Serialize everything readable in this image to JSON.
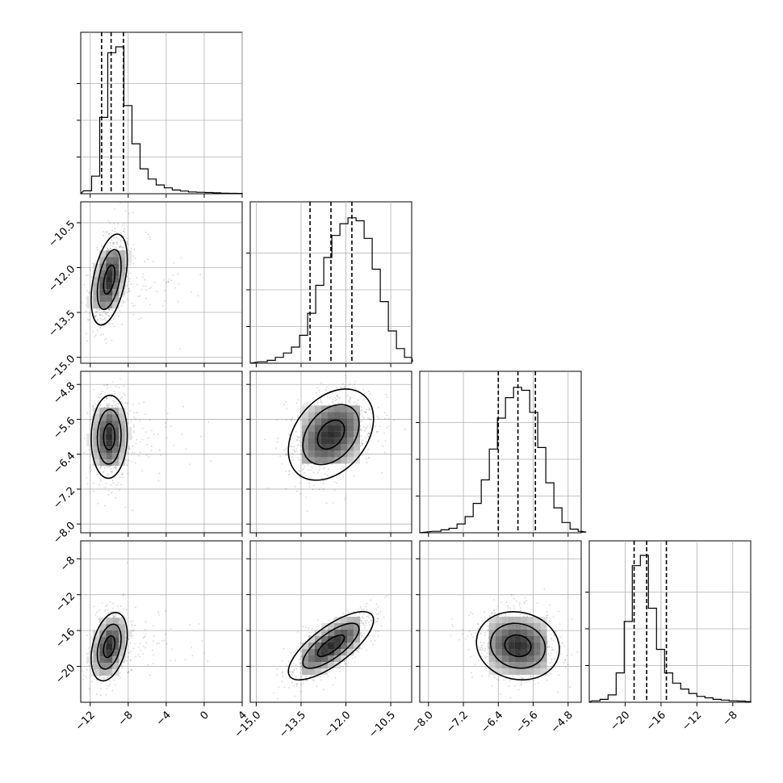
{
  "chart_data": {
    "type": "corner",
    "grid": true,
    "colors": {
      "line": "#000000",
      "grid": "#b0b0b0",
      "points": "#000000"
    },
    "parameters": [
      {
        "range": [
          -13,
          4
        ],
        "ticks": [
          -12,
          -8,
          -4,
          0,
          4
        ],
        "tick_labels": [
          "−12",
          "−8",
          "−4",
          "0",
          "4"
        ],
        "hist_bin_width": 0.85,
        "hist": [
          0.02,
          0.12,
          0.52,
          0.96,
          1.0,
          0.6,
          0.34,
          0.17,
          0.1,
          0.06,
          0.04,
          0.025,
          0.018,
          0.012,
          0.01,
          0.008,
          0.006,
          0.004,
          0.003,
          0.002
        ],
        "quantiles": [
          -10.8,
          -9.8,
          -8.5
        ]
      },
      {
        "range": [
          -15.2,
          -9.8
        ],
        "ticks": [
          -15.0,
          -13.5,
          -12.0,
          -10.5
        ],
        "tick_labels": [
          "−15.0",
          "−13.5",
          "−12.0",
          "−10.5"
        ],
        "hist_bin_width": 0.27,
        "hist": [
          0.01,
          0.02,
          0.04,
          0.07,
          0.11,
          0.19,
          0.34,
          0.53,
          0.72,
          0.87,
          0.95,
          0.99,
          0.97,
          0.85,
          0.64,
          0.42,
          0.22,
          0.1,
          0.04,
          0.015
        ],
        "quantiles": [
          -13.2,
          -12.5,
          -11.8
        ]
      },
      {
        "range": [
          -8.2,
          -4.5
        ],
        "ticks": [
          -8.0,
          -7.2,
          -6.4,
          -5.6,
          -4.8
        ],
        "tick_labels": [
          "−8.0",
          "−7.2",
          "−6.4",
          "−5.6",
          "−4.8"
        ],
        "hist_bin_width": 0.185,
        "hist": [
          0.01,
          0.02,
          0.03,
          0.06,
          0.11,
          0.2,
          0.36,
          0.57,
          0.78,
          0.92,
          0.99,
          0.97,
          0.82,
          0.58,
          0.34,
          0.17,
          0.07,
          0.025,
          0.01,
          0.005
        ],
        "quantiles": [
          -6.4,
          -5.95,
          -5.55
        ]
      },
      {
        "range": [
          -24,
          -6
        ],
        "ticks": [
          -20,
          -16,
          -12,
          -8
        ],
        "tick_labels": [
          "−20",
          "−16",
          "−12",
          "−8"
        ],
        "hist_bin_width": 0.9,
        "hist": [
          0.01,
          0.02,
          0.05,
          0.2,
          0.55,
          0.93,
          1.0,
          0.64,
          0.36,
          0.2,
          0.13,
          0.09,
          0.06,
          0.04,
          0.03,
          0.02,
          0.015,
          0.01,
          0.008,
          0.005
        ],
        "quantiles": [
          -19.0,
          -17.6,
          -15.4
        ]
      }
    ],
    "pairs": [
      {
        "x": 0,
        "y": 1,
        "mean": [
          -10.0,
          -12.4
        ],
        "sd": [
          1.0,
          0.8
        ],
        "corr": 0.45,
        "tail_x": 1.2,
        "levels": [
          0.4,
          0.9
        ]
      },
      {
        "x": 0,
        "y": 2,
        "mean": [
          -10.0,
          -6.0
        ],
        "sd": [
          1.0,
          0.5
        ],
        "corr": 0.05,
        "tail_x": 1.2,
        "levels": [
          0.4,
          0.9
        ]
      },
      {
        "x": 1,
        "y": 2,
        "mean": [
          -12.5,
          -5.95
        ],
        "sd": [
          0.75,
          0.55
        ],
        "corr": 0.35,
        "tail_x": 0,
        "levels": [
          0.4,
          0.9
        ]
      },
      {
        "x": 0,
        "y": 3,
        "mean": [
          -10.0,
          -17.8
        ],
        "sd": [
          1.0,
          2.0
        ],
        "corr": 0.35,
        "tail_x": 1.2,
        "levels": [
          0.4,
          0.9
        ]
      },
      {
        "x": 1,
        "y": 3,
        "mean": [
          -12.5,
          -17.7
        ],
        "sd": [
          0.75,
          2.0
        ],
        "corr": 0.75,
        "tail_x": 0,
        "levels": [
          0.4,
          0.9
        ]
      },
      {
        "x": 2,
        "y": 3,
        "mean": [
          -5.95,
          -17.7
        ],
        "sd": [
          0.5,
          2.0
        ],
        "corr": -0.1,
        "tail_x": 0,
        "levels": [
          0.4,
          0.9
        ]
      }
    ]
  }
}
